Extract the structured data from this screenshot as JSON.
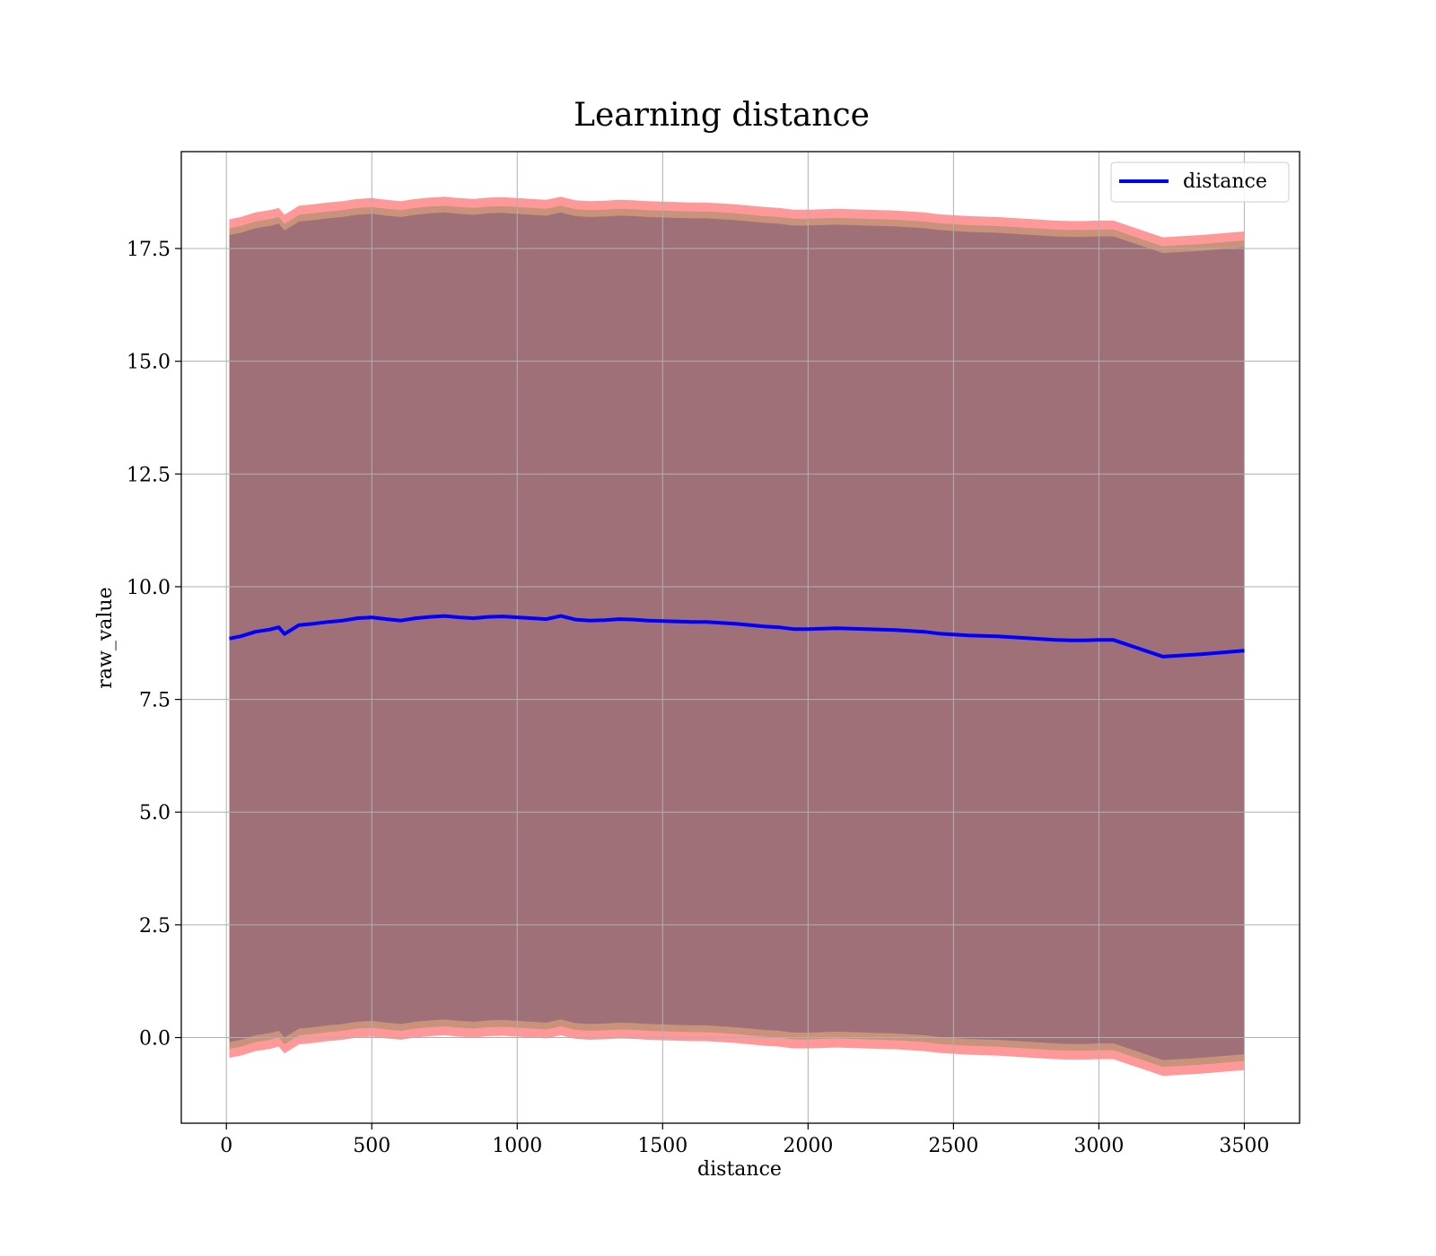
{
  "chart_data": {
    "type": "line",
    "title": "Learning distance",
    "xlabel": "distance",
    "ylabel": "raw_value",
    "xlim": [
      -155,
      3690
    ],
    "ylim": [
      -1.9,
      19.65
    ],
    "xticks": [
      0,
      500,
      1000,
      1500,
      2000,
      2500,
      3000,
      3500
    ],
    "yticks": [
      0.0,
      2.5,
      5.0,
      7.5,
      10.0,
      12.5,
      15.0,
      17.5
    ],
    "ytick_labels": [
      "0.0",
      "2.5",
      "5.0",
      "7.5",
      "10.0",
      "12.5",
      "15.0",
      "17.5"
    ],
    "grid": true,
    "legend": {
      "position": "top-right",
      "entries": [
        "distance"
      ]
    },
    "colors": {
      "line": "#0000ff",
      "outer_band": "#ff9999",
      "middle_band": "#c8937a",
      "inner_band": "#a07078"
    },
    "series": [
      {
        "name": "distance",
        "x": [
          10,
          50,
          100,
          150,
          180,
          200,
          250,
          300,
          350,
          400,
          450,
          500,
          550,
          600,
          650,
          700,
          750,
          800,
          850,
          900,
          950,
          1000,
          1050,
          1100,
          1150,
          1200,
          1250,
          1300,
          1350,
          1400,
          1450,
          1500,
          1550,
          1600,
          1650,
          1700,
          1750,
          1800,
          1850,
          1900,
          1950,
          2000,
          2050,
          2100,
          2150,
          2200,
          2250,
          2300,
          2350,
          2400,
          2450,
          2500,
          2550,
          2600,
          2650,
          2700,
          2750,
          2800,
          2850,
          2900,
          2950,
          3000,
          3050,
          3220,
          3350,
          3500
        ],
        "y": [
          8.85,
          8.9,
          9.0,
          9.05,
          9.1,
          8.95,
          9.15,
          9.18,
          9.22,
          9.25,
          9.3,
          9.32,
          9.28,
          9.25,
          9.3,
          9.33,
          9.35,
          9.32,
          9.3,
          9.33,
          9.34,
          9.32,
          9.3,
          9.28,
          9.35,
          9.27,
          9.25,
          9.26,
          9.28,
          9.27,
          9.25,
          9.24,
          9.23,
          9.22,
          9.22,
          9.2,
          9.18,
          9.15,
          9.12,
          9.1,
          9.06,
          9.06,
          9.07,
          9.08,
          9.07,
          9.06,
          9.05,
          9.04,
          9.02,
          9.0,
          8.96,
          8.94,
          8.92,
          8.91,
          8.9,
          8.88,
          8.86,
          8.84,
          8.82,
          8.81,
          8.81,
          8.82,
          8.82,
          8.45,
          8.5,
          8.58
        ],
        "band_outer_halfwidth": 9.3,
        "band_middle_halfwidth": 9.1,
        "band_inner_halfwidth": 8.95
      }
    ]
  }
}
